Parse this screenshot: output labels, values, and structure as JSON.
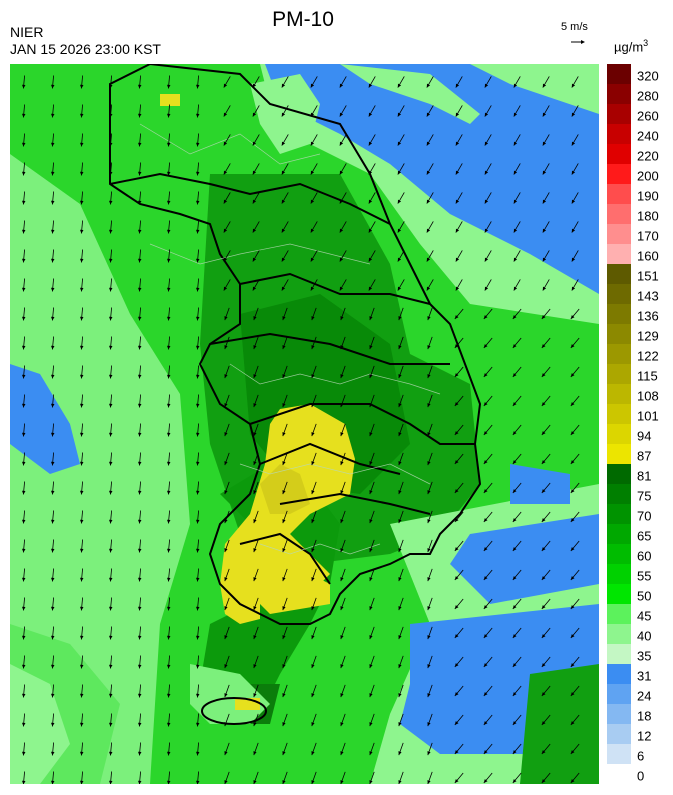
{
  "header": {
    "agency": "NIER",
    "datetime": "JAN 15 2026 23:00 KST",
    "title": "PM-10",
    "wind_reference": "5 m/s",
    "unit_base": "µg/m",
    "unit_exp": "3"
  },
  "legend": {
    "labels": [
      "320",
      "280",
      "260",
      "240",
      "220",
      "200",
      "190",
      "180",
      "170",
      "160",
      "151",
      "143",
      "136",
      "129",
      "122",
      "115",
      "108",
      "101",
      "94",
      "87",
      "81",
      "75",
      "70",
      "65",
      "60",
      "55",
      "50",
      "45",
      "40",
      "35",
      "31",
      "24",
      "18",
      "12",
      "6",
      "0"
    ],
    "colors": [
      "#6b0000",
      "#8a0000",
      "#a80000",
      "#c80000",
      "#e00000",
      "#ff1a1a",
      "#ff4d4d",
      "#ff6e6e",
      "#ff8e8e",
      "#ffb0b0",
      "#5e5a00",
      "#6e6a00",
      "#7d7a00",
      "#8c8900",
      "#9c9800",
      "#aca700",
      "#bcb700",
      "#ccc600",
      "#dcd600",
      "#ece500",
      "#006a00",
      "#007f00",
      "#009300",
      "#00a800",
      "#00bc00",
      "#00d100",
      "#00e600",
      "#5cf25c",
      "#8ef58e",
      "#c4f7c4",
      "#3b8df2",
      "#5fa3f2",
      "#84b8f2",
      "#a8ccf2",
      "#cfe2f5"
    ]
  }
}
